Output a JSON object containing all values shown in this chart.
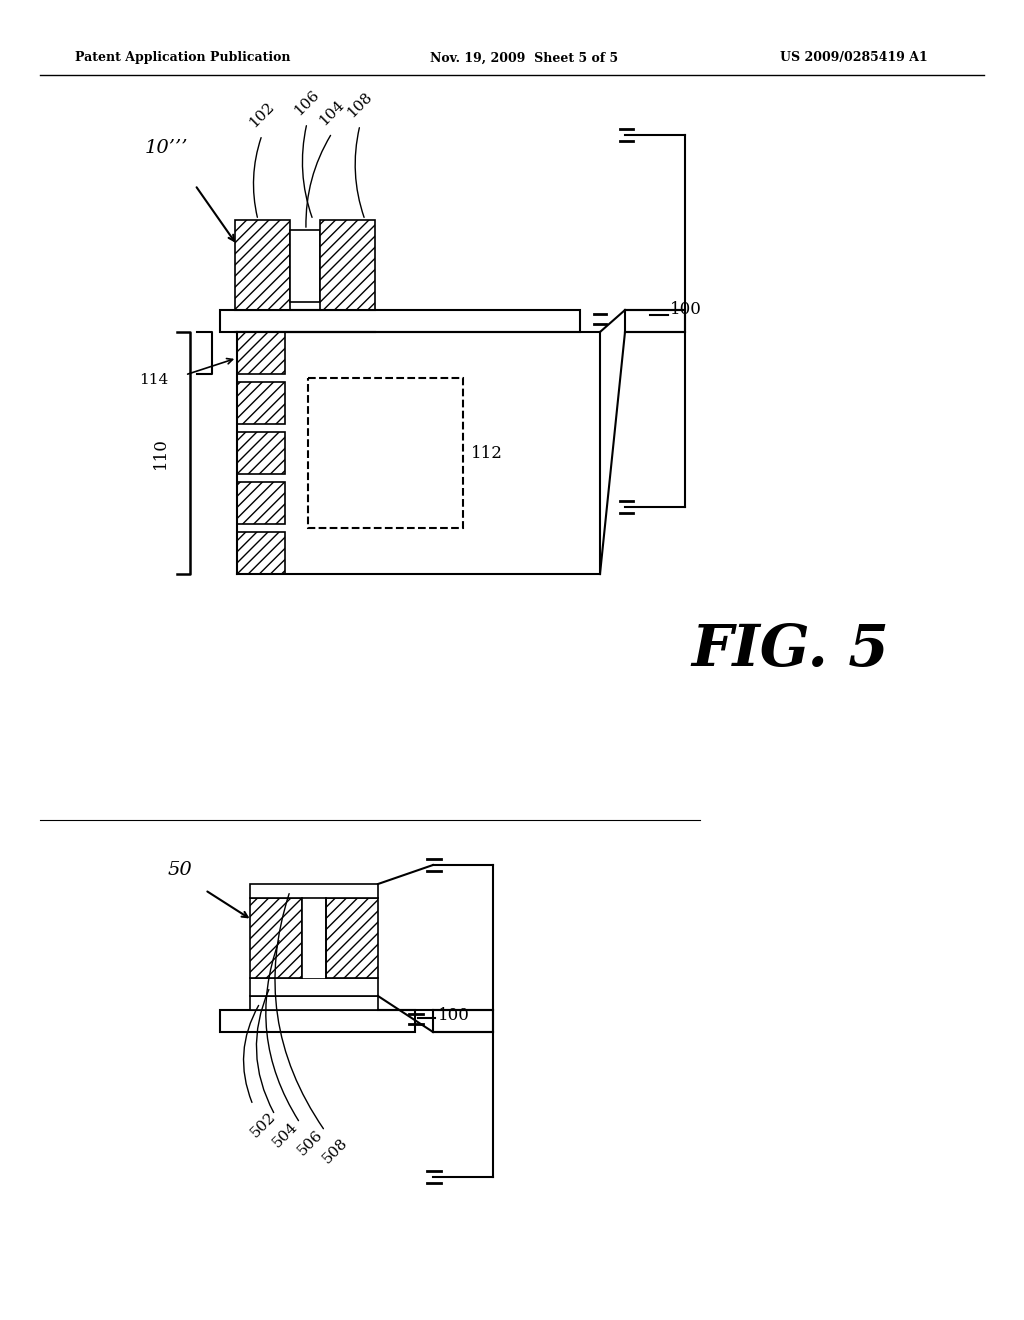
{
  "bg_color": "#ffffff",
  "header_left": "Patent Application Publication",
  "header_mid": "Nov. 19, 2009  Sheet 5 of 5",
  "header_right": "US 2009/0285419 A1",
  "fig_label": "FIG. 5"
}
